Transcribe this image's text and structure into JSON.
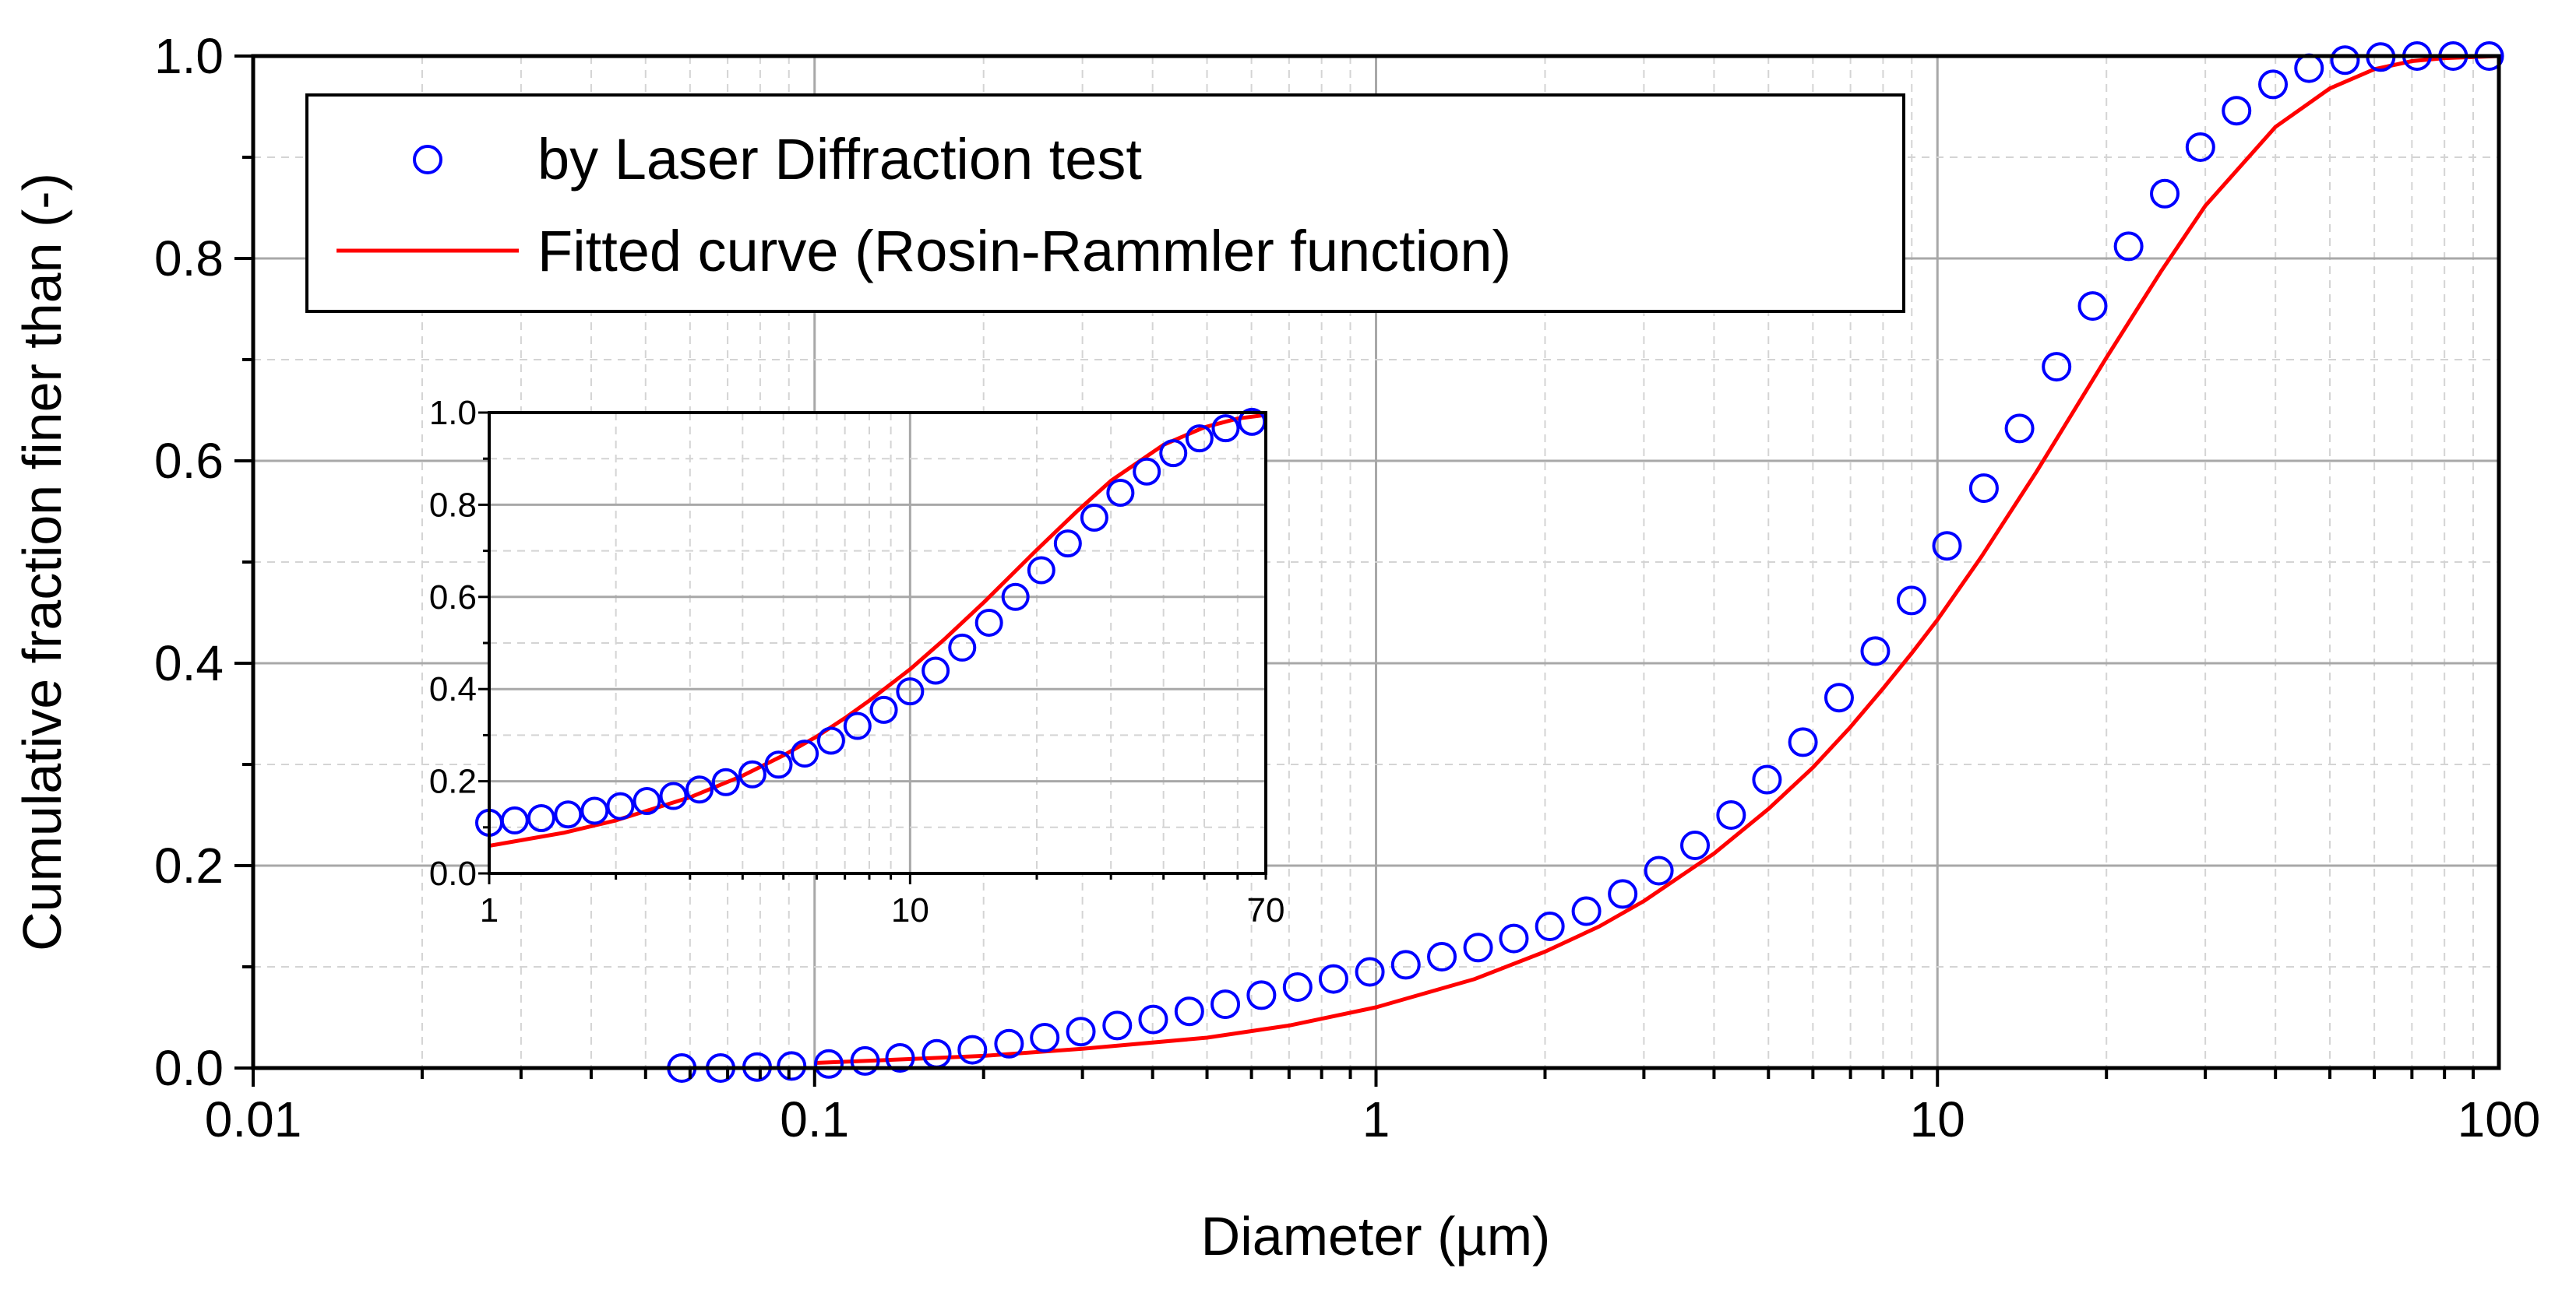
{
  "chart_data": [
    {
      "id": "main",
      "type": "scatter",
      "title": "",
      "xlabel": "Diameter (µm)",
      "ylabel": "Cumulative fraction finer than (-)",
      "xscale": "log",
      "xlim": [
        0.01,
        100
      ],
      "ylim": [
        0.0,
        1.0
      ],
      "x_ticks": [
        0.01,
        0.1,
        1,
        10,
        100
      ],
      "x_tick_labels": [
        "0.01",
        "0.1",
        "1",
        "10",
        "100"
      ],
      "y_ticks": [
        0.0,
        0.2,
        0.4,
        0.6,
        0.8,
        1.0
      ],
      "y_tick_labels": [
        "0.0",
        "0.2",
        "0.4",
        "0.6",
        "0.8",
        "1.0"
      ],
      "grid": true,
      "legend_position": "top-left",
      "legend": [
        {
          "label": "by Laser Diffraction test",
          "marker": "open-circle",
          "color": "#0000ff"
        },
        {
          "label": "Fitted curve (Rosin-Rammler function)",
          "marker": "line",
          "color": "#ff0000"
        }
      ],
      "series": [
        {
          "name": "by Laser Diffraction test",
          "kind": "markers",
          "color": "#0000ff",
          "x": [
            0.058,
            0.068,
            0.079,
            0.091,
            0.106,
            0.123,
            0.142,
            0.165,
            0.191,
            0.222,
            0.257,
            0.298,
            0.346,
            0.401,
            0.465,
            0.539,
            0.625,
            0.725,
            0.84,
            0.975,
            1.13,
            1.31,
            1.52,
            1.76,
            2.04,
            2.37,
            2.75,
            3.19,
            3.7,
            4.29,
            4.97,
            5.76,
            6.68,
            7.75,
            8.99,
            10.4,
            12.1,
            14.0,
            16.3,
            18.9,
            21.9,
            25.4,
            29.4,
            34.1,
            39.6,
            45.9,
            53.2,
            61.6,
            71.5,
            82.9,
            96.1
          ],
          "y": [
            0.0,
            0.0,
            0.001,
            0.002,
            0.004,
            0.007,
            0.01,
            0.014,
            0.018,
            0.024,
            0.03,
            0.036,
            0.042,
            0.048,
            0.056,
            0.063,
            0.072,
            0.08,
            0.088,
            0.095,
            0.102,
            0.11,
            0.119,
            0.128,
            0.14,
            0.155,
            0.172,
            0.195,
            0.22,
            0.25,
            0.285,
            0.322,
            0.366,
            0.412,
            0.462,
            0.516,
            0.573,
            0.632,
            0.693,
            0.753,
            0.812,
            0.864,
            0.91,
            0.946,
            0.972,
            0.988,
            0.996,
            0.999,
            1.0,
            1.0,
            1.0
          ]
        },
        {
          "name": "Fitted curve (Rosin-Rammler function)",
          "kind": "line",
          "color": "#ff0000",
          "x": [
            0.1,
            0.15,
            0.2,
            0.3,
            0.5,
            0.7,
            1.0,
            1.5,
            2.0,
            2.5,
            3.0,
            4.0,
            5.0,
            6.0,
            7.0,
            8.0,
            9.0,
            10.0,
            12.0,
            15.0,
            20.0,
            25.0,
            30.0,
            40.0,
            50.0,
            60.0,
            70.0,
            80.0,
            100.0
          ],
          "y": [
            0.005,
            0.009,
            0.012,
            0.019,
            0.03,
            0.042,
            0.06,
            0.088,
            0.115,
            0.14,
            0.165,
            0.212,
            0.256,
            0.297,
            0.337,
            0.375,
            0.41,
            0.443,
            0.506,
            0.589,
            0.702,
            0.787,
            0.852,
            0.93,
            0.968,
            0.987,
            0.995,
            0.998,
            1.0
          ]
        }
      ]
    },
    {
      "id": "inset",
      "type": "scatter",
      "title": "",
      "xlabel": "",
      "ylabel": "",
      "xscale": "log",
      "xlim": [
        1,
        70
      ],
      "ylim": [
        0.0,
        1.0
      ],
      "x_ticks": [
        1,
        10,
        70
      ],
      "x_tick_labels": [
        "1",
        "10",
        "70"
      ],
      "y_ticks": [
        0.0,
        0.2,
        0.4,
        0.6,
        0.8,
        1.0
      ],
      "y_tick_labels": [
        "0.0",
        "0.2",
        "0.4",
        "0.6",
        "0.8",
        "1.0"
      ],
      "grid": true,
      "legend_position": "none",
      "series": [
        {
          "name": "by Laser Diffraction test",
          "kind": "markers",
          "color": "#0000ff",
          "x": [
            1.0,
            1.15,
            1.33,
            1.54,
            1.78,
            2.05,
            2.37,
            2.74,
            3.16,
            3.65,
            4.22,
            4.87,
            5.62,
            6.49,
            7.5,
            8.66,
            10.0,
            11.5,
            13.3,
            15.4,
            17.8,
            20.5,
            23.7,
            27.4,
            31.6,
            36.5,
            42.2,
            48.7,
            56.2,
            64.9
          ],
          "y": [
            0.11,
            0.115,
            0.12,
            0.128,
            0.136,
            0.146,
            0.157,
            0.168,
            0.182,
            0.198,
            0.215,
            0.236,
            0.26,
            0.288,
            0.32,
            0.355,
            0.395,
            0.44,
            0.49,
            0.544,
            0.6,
            0.658,
            0.716,
            0.772,
            0.826,
            0.872,
            0.912,
            0.944,
            0.966,
            0.98
          ]
        },
        {
          "name": "Fitted curve (Rosin-Rammler function)",
          "kind": "line",
          "color": "#ff0000",
          "x": [
            1.0,
            1.5,
            2.0,
            3.0,
            4.0,
            5.0,
            6.0,
            7.0,
            8.0,
            10.0,
            12.0,
            15.0,
            20.0,
            25.0,
            30.0,
            40.0,
            50.0,
            60.0,
            70.0
          ],
          "y": [
            0.06,
            0.088,
            0.115,
            0.165,
            0.212,
            0.256,
            0.297,
            0.337,
            0.375,
            0.443,
            0.506,
            0.589,
            0.702,
            0.787,
            0.852,
            0.93,
            0.968,
            0.987,
            0.995
          ]
        }
      ]
    }
  ]
}
